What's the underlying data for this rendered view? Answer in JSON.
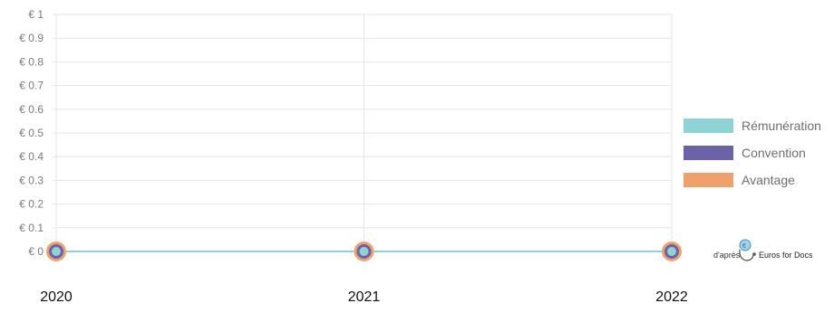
{
  "chart_data": {
    "type": "line",
    "title": "",
    "xlabel": "",
    "ylabel": "",
    "x": [
      "2020",
      "2021",
      "2022"
    ],
    "ylim": [
      0,
      1
    ],
    "yticks": [
      "€ 0",
      "€ 0.1",
      "€ 0.2",
      "€ 0.3",
      "€ 0.4",
      "€ 0.5",
      "€ 0.6",
      "€ 0.7",
      "€ 0.8",
      "€ 0.9",
      "€ 1"
    ],
    "grid": true,
    "legend_position": "right",
    "series": [
      {
        "name": "Rémunération",
        "values": [
          0,
          0,
          0
        ],
        "color": "#8ed4d4"
      },
      {
        "name": "Convention",
        "values": [
          0,
          0,
          0
        ],
        "color": "#6b62a8"
      },
      {
        "name": "Avantage",
        "values": [
          0,
          0,
          0
        ],
        "color": "#f0a06b"
      }
    ]
  },
  "credit": {
    "prefix": "d'après",
    "brand": "Euros for Docs",
    "logo_icon": "stethoscope-euro-icon"
  }
}
